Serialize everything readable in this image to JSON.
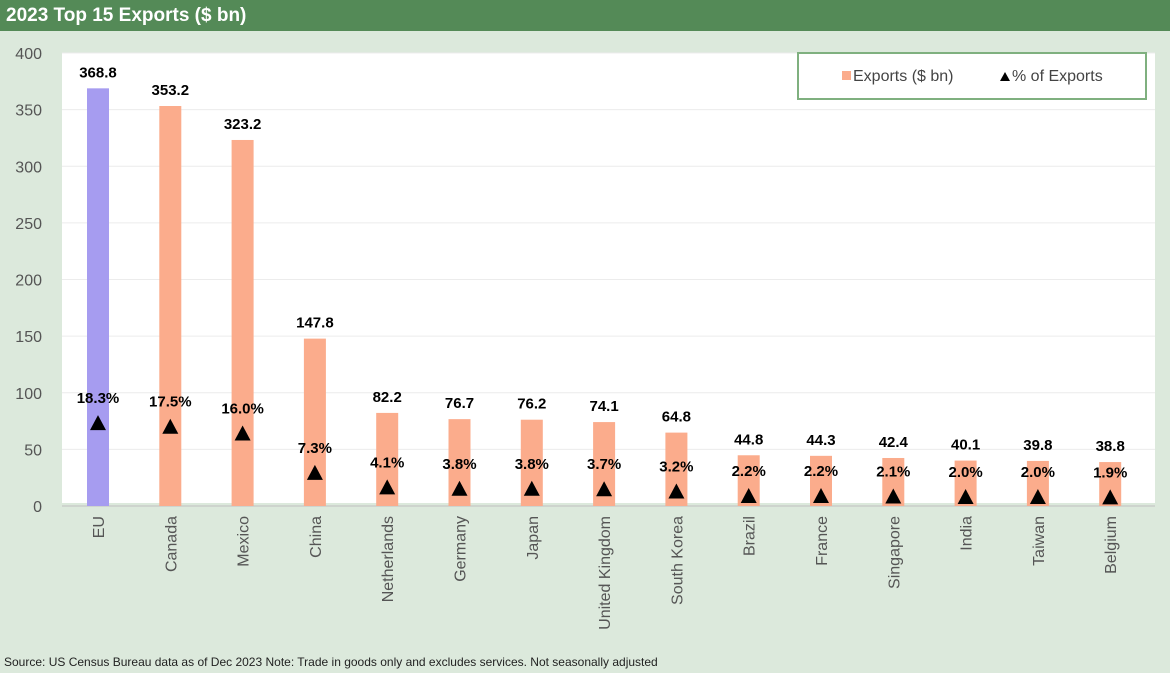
{
  "header": {
    "title": "2023 Top 15 Exports ($ bn)"
  },
  "footer": {
    "source": "Source: US Census Bureau data as of Dec 2023 Note: Trade in goods only and excludes services. Not seasonally adjusted"
  },
  "chart_data": {
    "type": "bar",
    "categories": [
      "EU",
      "Canada",
      "Mexico",
      "China",
      "Netherlands",
      "Germany",
      "Japan",
      "United Kingdom",
      "South Korea",
      "Brazil",
      "France",
      "Singapore",
      "India",
      "Taiwan",
      "Belgium"
    ],
    "series": [
      {
        "name": "Exports ($ bn)",
        "type": "bar",
        "values": [
          368.8,
          353.2,
          323.2,
          147.8,
          82.2,
          76.7,
          76.2,
          74.1,
          64.8,
          44.8,
          44.3,
          42.4,
          40.1,
          39.8,
          38.8
        ],
        "labels": [
          "368.8",
          "353.2",
          "323.2",
          "147.8",
          "82.2",
          "76.7",
          "76.2",
          "74.1",
          "64.8",
          "44.8",
          "44.3",
          "42.4",
          "40.1",
          "39.8",
          "38.8"
        ]
      },
      {
        "name": "% of Exports",
        "type": "scatter",
        "marker": "triangle",
        "values": [
          18.3,
          17.5,
          16.0,
          7.3,
          4.1,
          3.8,
          3.8,
          3.7,
          3.2,
          2.2,
          2.2,
          2.1,
          2.0,
          2.0,
          1.9
        ],
        "labels": [
          "18.3%",
          "17.5%",
          "16.0%",
          "7.3%",
          "4.1%",
          "3.8%",
          "3.8%",
          "3.7%",
          "3.2%",
          "2.2%",
          "2.2%",
          "2.1%",
          "2.0%",
          "2.0%",
          "1.9%"
        ]
      }
    ],
    "yticks": [
      "0",
      "50",
      "100",
      "150",
      "200",
      "250",
      "300",
      "350",
      "400"
    ],
    "ylim": [
      0,
      400
    ],
    "colors": {
      "highlight": "#a69cf0",
      "bar": "#fbac8c",
      "marker": "#000000",
      "legend_border": "#7fb07f"
    },
    "legend": {
      "position": "top-right"
    },
    "grid": true
  }
}
